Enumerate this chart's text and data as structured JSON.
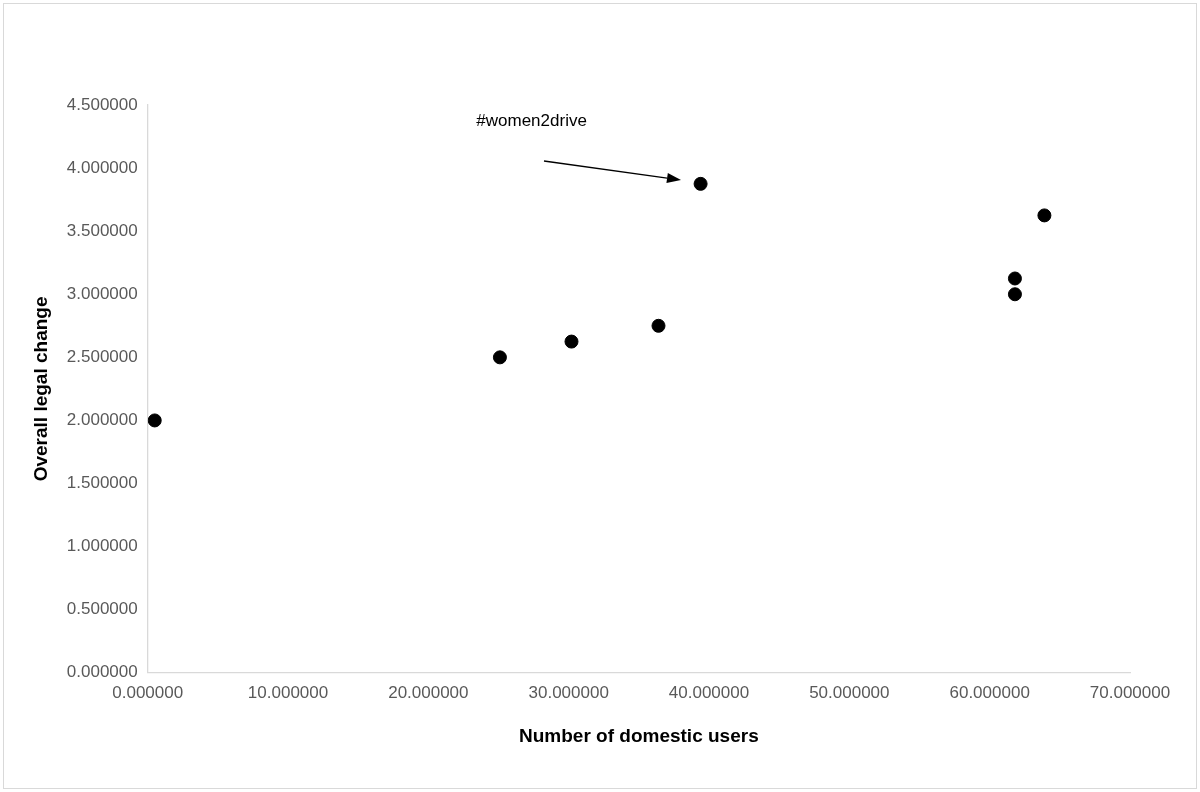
{
  "chart_data": {
    "type": "scatter",
    "xlabel": "Number of domestic users",
    "ylabel": "Overall legal change",
    "x": [
      0.5,
      25.1,
      30.2,
      36.4,
      39.4,
      61.8,
      61.8,
      63.9
    ],
    "values": [
      2.0,
      2.5,
      2.625,
      2.75,
      3.875,
      3.0,
      3.125,
      3.625
    ],
    "color": "#000000",
    "marker": "circle",
    "grid": false,
    "legend": false,
    "xlim": [
      0,
      70
    ],
    "ylim": [
      0,
      4.5
    ],
    "xticks": [
      {
        "value": 0,
        "label": "0.000000"
      },
      {
        "value": 10,
        "label": "10.000000"
      },
      {
        "value": 20,
        "label": "20.000000"
      },
      {
        "value": 30,
        "label": "30.000000"
      },
      {
        "value": 40,
        "label": "40.000000"
      },
      {
        "value": 50,
        "label": "50.000000"
      },
      {
        "value": 60,
        "label": "60.000000"
      },
      {
        "value": 70,
        "label": "70.000000"
      }
    ],
    "yticks": [
      {
        "value": 0,
        "label": "0.000000"
      },
      {
        "value": 0.5,
        "label": "0.500000"
      },
      {
        "value": 1,
        "label": "1.000000"
      },
      {
        "value": 1.5,
        "label": "1.500000"
      },
      {
        "value": 2,
        "label": "2.000000"
      },
      {
        "value": 2.5,
        "label": "2.500000"
      },
      {
        "value": 3,
        "label": "3.000000"
      },
      {
        "value": 3.5,
        "label": "3.500000"
      },
      {
        "value": 4,
        "label": "4.000000"
      },
      {
        "value": 4.5,
        "label": "4.500000"
      }
    ],
    "annotations": [
      "#women2drive"
    ]
  }
}
